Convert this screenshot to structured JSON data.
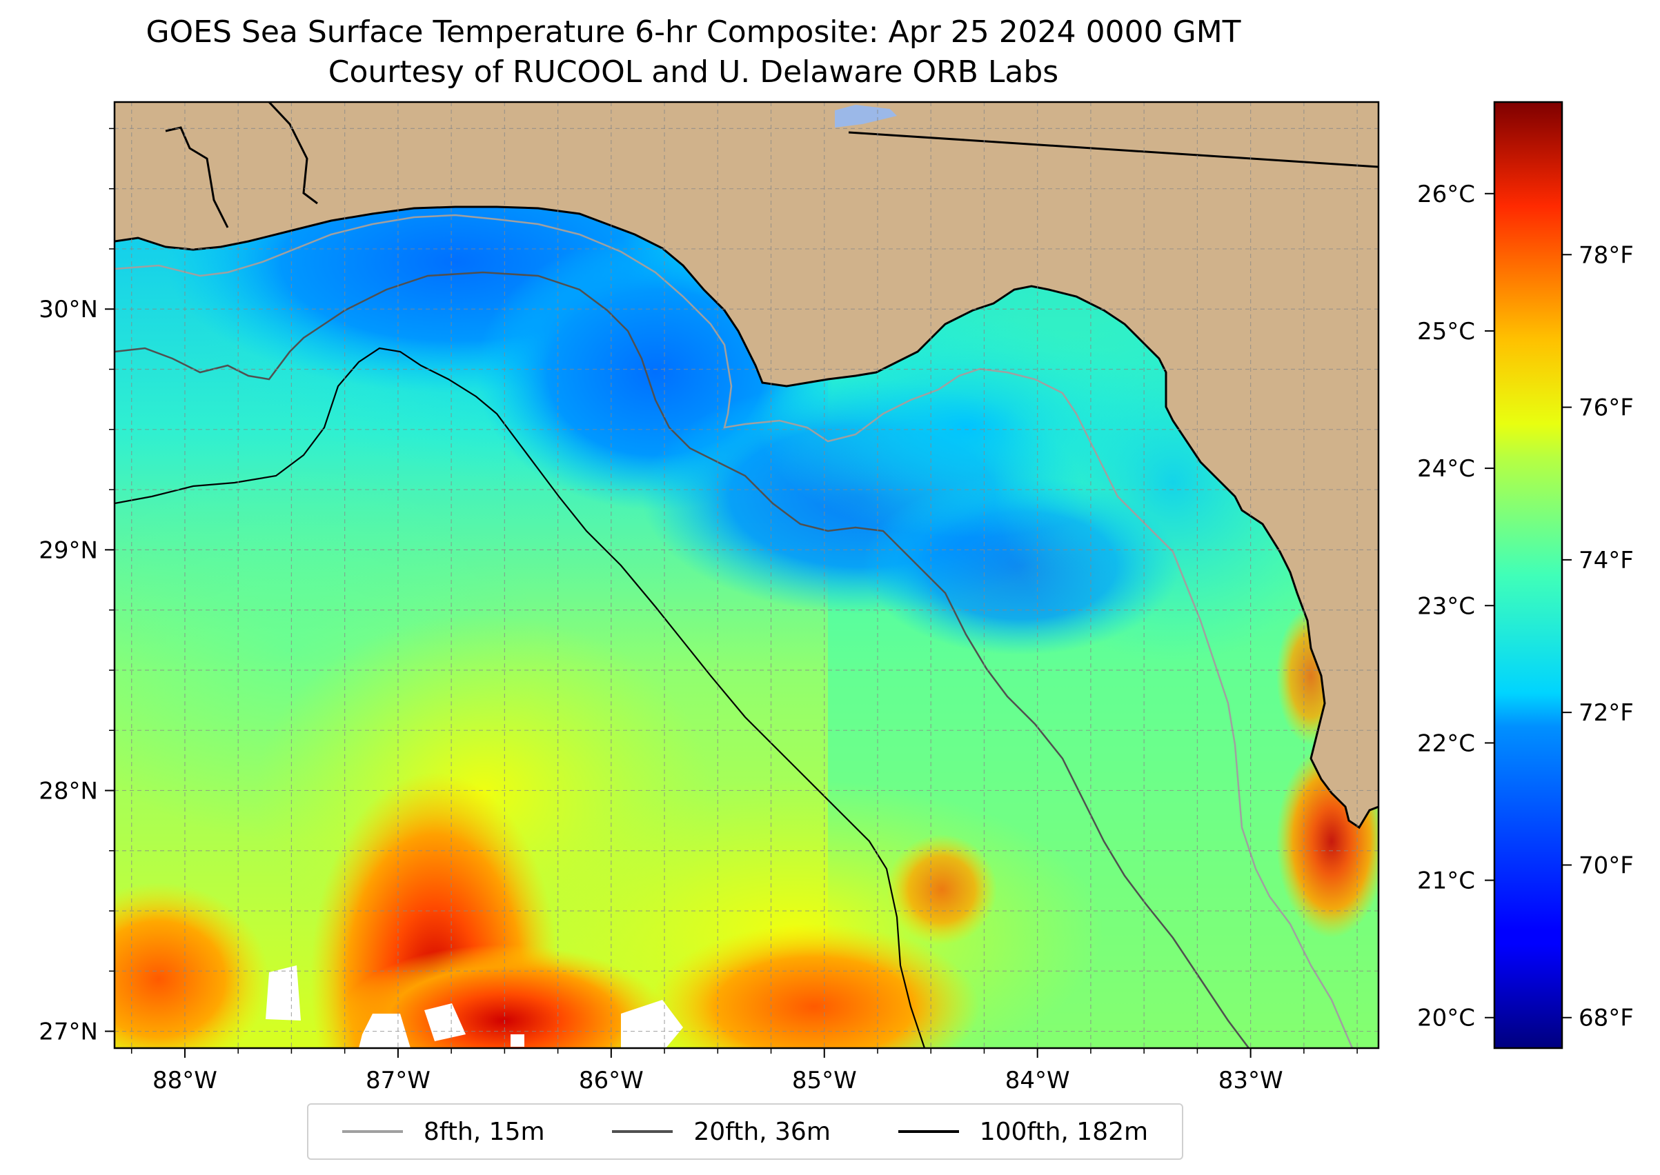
{
  "title": {
    "line1": "GOES Sea Surface Temperature 6-hr Composite: Apr 25 2024 0000 GMT",
    "line2": "Courtesy of RUCOOL and U. Delaware ORB Labs"
  },
  "map": {
    "extent": {
      "lon_min": -88.33,
      "lon_max": -82.4,
      "lat_min": 26.93,
      "lat_max": 30.86
    },
    "lon_ticks": [
      {
        "value": -88,
        "label": "88°W"
      },
      {
        "value": -87,
        "label": "87°W"
      },
      {
        "value": -86,
        "label": "86°W"
      },
      {
        "value": -85,
        "label": "85°W"
      },
      {
        "value": -84,
        "label": "84°W"
      },
      {
        "value": -83,
        "label": "83°W"
      }
    ],
    "lat_ticks": [
      {
        "value": 27,
        "label": "27°N"
      },
      {
        "value": 28,
        "label": "28°N"
      },
      {
        "value": 29,
        "label": "29°N"
      },
      {
        "value": 30,
        "label": "30°N"
      }
    ],
    "land_color": "#d0b28b",
    "grid": true
  },
  "colorbar": {
    "colormap": "jet",
    "celsius_ticks": [
      {
        "value": 20,
        "label": "20°C"
      },
      {
        "value": 21,
        "label": "21°C"
      },
      {
        "value": 22,
        "label": "22°C"
      },
      {
        "value": 23,
        "label": "23°C"
      },
      {
        "value": 24,
        "label": "24°C"
      },
      {
        "value": 25,
        "label": "25°C"
      },
      {
        "value": 26,
        "label": "26°C"
      }
    ],
    "fahrenheit_ticks": [
      {
        "value": 68,
        "label": "68°F"
      },
      {
        "value": 70,
        "label": "70°F"
      },
      {
        "value": 72,
        "label": "72°F"
      },
      {
        "value": 74,
        "label": "74°F"
      },
      {
        "value": 76,
        "label": "76°F"
      },
      {
        "value": 78,
        "label": "78°F"
      }
    ],
    "range_f": [
      67.6,
      80.0
    ]
  },
  "legend": [
    {
      "label": "8fth, 15m",
      "color": "#a0a0a0"
    },
    {
      "label": "20fth, 36m",
      "color": "#505050"
    },
    {
      "label": "100fth, 182m",
      "color": "#000000"
    }
  ]
}
